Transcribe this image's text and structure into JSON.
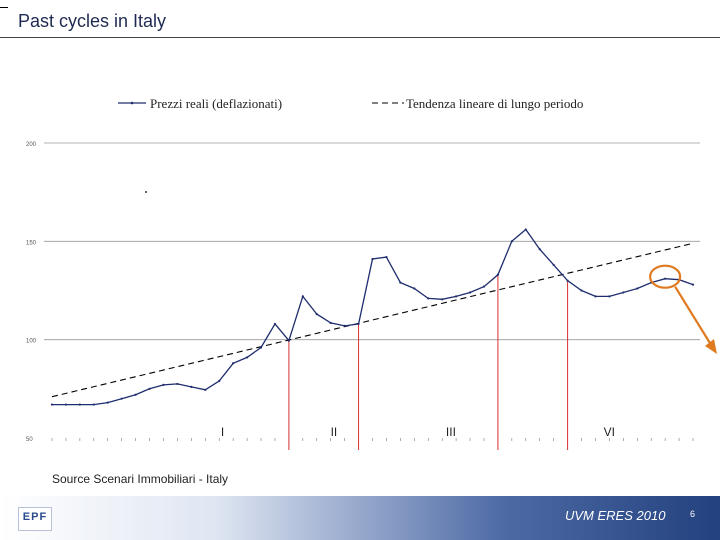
{
  "slide": {
    "title": "Past cycles in Italy",
    "source": "Source Scenari Immobiliari - Italy",
    "footer_text": "UVM  ERES 2010",
    "page_number": "6",
    "logo_text": "EPF"
  },
  "colors": {
    "series": "#1f2d6e",
    "trend": "#000000",
    "markers": "#d9302f",
    "highlight": "#e07a1f",
    "grid": "#9a9a9a"
  },
  "chart_data": {
    "type": "line",
    "title": "",
    "xlabel": "",
    "ylabel": "",
    "ylim": [
      50,
      200
    ],
    "yticks": [
      50,
      100,
      150,
      200
    ],
    "x_ticks_legible": false,
    "grid": true,
    "legend": {
      "placement": "top",
      "entries": [
        "Prezzi reali (deflazionati)",
        "Tendenza lineare di lungo periodo"
      ]
    },
    "series": [
      {
        "name": "Prezzi reali (deflazionati)",
        "values": [
          67,
          67,
          67,
          67,
          68,
          70,
          72,
          75,
          77,
          77.5,
          76,
          74.5,
          79,
          88,
          91,
          96,
          108,
          99.5,
          122,
          113,
          108.5,
          107,
          108,
          141,
          142,
          129,
          126,
          121,
          120.5,
          122,
          124,
          127,
          133,
          150,
          156,
          146,
          138,
          130,
          125,
          122,
          122,
          124,
          126,
          129,
          131,
          130.5,
          128
        ]
      },
      {
        "name": "Tendenza lineare di lungo periodo",
        "start": 71,
        "end": 149
      }
    ],
    "cycle_markers": [
      {
        "label": "I",
        "index": 17
      },
      {
        "label": "II",
        "index": 22
      },
      {
        "label": "III",
        "index": 32
      },
      {
        "label": "VI",
        "index": 37
      }
    ],
    "highlight_index": 44
  }
}
